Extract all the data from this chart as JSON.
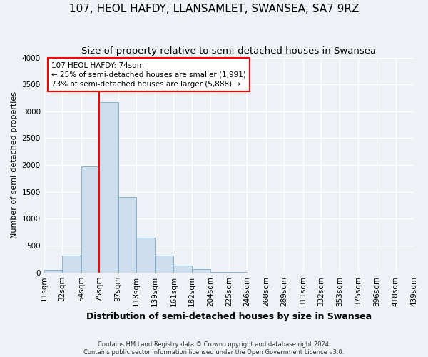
{
  "title": "107, HEOL HAFDY, LLANSAMLET, SWANSEA, SA7 9RZ",
  "subtitle": "Size of property relative to semi-detached houses in Swansea",
  "xlabel": "Distribution of semi-detached houses by size in Swansea",
  "ylabel": "Number of semi-detached properties",
  "bar_color": "#ccdded",
  "bar_edgecolor": "#7aaac8",
  "background_color": "#eef2f7",
  "grid_color": "#ffffff",
  "annotation_line1": "107 HEOL HAFDY: 74sqm",
  "annotation_line2": "← 25% of semi-detached houses are smaller (1,991)",
  "annotation_line3": "73% of semi-detached houses are larger (5,888) →",
  "property_line_x": 75,
  "property_line_color": "red",
  "ylim": [
    0,
    4000
  ],
  "yticks": [
    0,
    500,
    1000,
    1500,
    2000,
    2500,
    3000,
    3500,
    4000
  ],
  "bin_edges": [
    11,
    32,
    54,
    75,
    97,
    118,
    139,
    161,
    182,
    204,
    225,
    246,
    268,
    289,
    311,
    332,
    353,
    375,
    396,
    418,
    439
  ],
  "bin_labels": [
    "11sqm",
    "32sqm",
    "54sqm",
    "75sqm",
    "97sqm",
    "118sqm",
    "139sqm",
    "161sqm",
    "182sqm",
    "204sqm",
    "225sqm",
    "246sqm",
    "268sqm",
    "289sqm",
    "311sqm",
    "332sqm",
    "353sqm",
    "375sqm",
    "396sqm",
    "418sqm",
    "439sqm"
  ],
  "bar_heights": [
    50,
    320,
    1980,
    3170,
    1400,
    650,
    310,
    130,
    60,
    5,
    3,
    2,
    1,
    0,
    0,
    0,
    0,
    0,
    0,
    0
  ],
  "footer_text": "Contains HM Land Registry data © Crown copyright and database right 2024.\nContains public sector information licensed under the Open Government Licence v3.0.",
  "title_fontsize": 11,
  "subtitle_fontsize": 9.5,
  "xlabel_fontsize": 9,
  "ylabel_fontsize": 8,
  "tick_fontsize": 7.5,
  "footer_fontsize": 6
}
